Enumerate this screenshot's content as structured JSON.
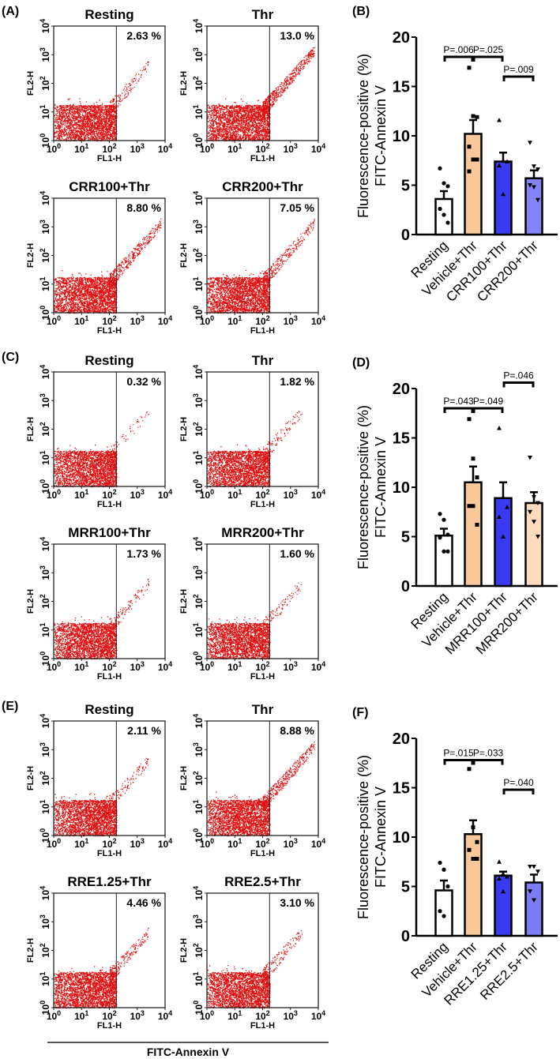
{
  "flow_axes": {
    "x_label": "FL1-H",
    "y_label": "FL2-H",
    "tick_base": "10",
    "tick_exponents": [
      "0",
      "1",
      "2",
      "3",
      "4"
    ]
  },
  "bottom_label": "FITC-Annexin V",
  "flow_panels": [
    {
      "label": "(A)",
      "plots": [
        {
          "title": "Resting",
          "percent": "2.63 %"
        },
        {
          "title": "Thr",
          "percent": "13.0 %"
        },
        {
          "title": "CRR100+Thr",
          "percent": "8.80 %"
        },
        {
          "title": "CRR200+Thr",
          "percent": "7.05 %"
        }
      ]
    },
    {
      "label": "(C)",
      "plots": [
        {
          "title": "Resting",
          "percent": "0.32 %"
        },
        {
          "title": "Thr",
          "percent": "1.82 %"
        },
        {
          "title": "MRR100+Thr",
          "percent": "1.73 %"
        },
        {
          "title": "MRR200+Thr",
          "percent": "1.60 %"
        }
      ]
    },
    {
      "label": "(E)",
      "plots": [
        {
          "title": "Resting",
          "percent": "2.11 %"
        },
        {
          "title": "Thr",
          "percent": "8.88 %"
        },
        {
          "title": "RRE1.25+Thr",
          "percent": "4.46 %"
        },
        {
          "title": "RRE2.5+Thr",
          "percent": "3.10 %"
        }
      ]
    }
  ],
  "chart_data": [
    {
      "type": "bar",
      "panel": "(B)",
      "ylabel": [
        "Fluorescence-positive (%)",
        "FITC-Annexin V"
      ],
      "ylim": [
        0,
        20
      ],
      "yticks": [
        "0",
        "5",
        "10",
        "15",
        "20"
      ],
      "categories": [
        "Resting",
        "Vehicle+Thr",
        "CRR100+Thr",
        "CRR200+Thr"
      ],
      "colors": [
        "#ffffff",
        "#f9c89a",
        "#3a3af2",
        "#8484f6"
      ],
      "markers": [
        "circle",
        "square",
        "triangle",
        "triangle-down"
      ],
      "means": [
        3.6,
        10.2,
        7.4,
        5.7
      ],
      "sem": [
        0.8,
        1.4,
        0.9,
        0.8
      ],
      "points": [
        [
          6.7,
          5.2,
          4.9,
          2.6,
          2.0,
          1.2
        ],
        [
          16.9,
          12.0,
          11.9,
          8.9,
          7.6,
          7.6,
          6.4
        ],
        [
          11.6,
          7.5,
          7.4,
          7.0,
          4.1
        ],
        [
          9.3,
          6.9,
          6.6,
          5.0,
          4.8,
          3.5
        ]
      ],
      "comparisons": [
        {
          "from": 0,
          "to": 1,
          "level": 18,
          "label": "P=.006"
        },
        {
          "from": 1,
          "to": 2,
          "level": 18,
          "label": "P=.025"
        },
        {
          "from": 2,
          "to": 3,
          "level": 16,
          "label": "P=.009"
        }
      ]
    },
    {
      "type": "bar",
      "panel": "(D)",
      "ylabel": [
        "Fluorescence-positive (%)",
        "FITC-Annexin V"
      ],
      "ylim": [
        0,
        20
      ],
      "yticks": [
        "0",
        "5",
        "10",
        "15",
        "20"
      ],
      "categories": [
        "Resting",
        "Vehicle+Thr",
        "MRR100+Thr",
        "MRR200+Thr"
      ],
      "colors": [
        "#ffffff",
        "#f9c89a",
        "#3a3af2",
        "#fcdcbc"
      ],
      "markers": [
        "circle",
        "square",
        "triangle",
        "triangle-down"
      ],
      "means": [
        5.1,
        10.5,
        8.9,
        8.4
      ],
      "sem": [
        0.7,
        1.6,
        1.6,
        1.1
      ],
      "points": [
        [
          7.3,
          6.7,
          5.2,
          4.9,
          3.5,
          3.5
        ],
        [
          16.9,
          12.9,
          11.0,
          8.1,
          8.1,
          6.2
        ],
        [
          16.0,
          9.0,
          8.0,
          7.0,
          5.0
        ],
        [
          13.0,
          9.0,
          8.4,
          7.5,
          6.5,
          5.0
        ]
      ],
      "comparisons": [
        {
          "from": 0,
          "to": 1,
          "level": 18,
          "label": "P=.043"
        },
        {
          "from": 1,
          "to": 2,
          "level": 18,
          "label": "P=.049"
        },
        {
          "from": 2,
          "to": 3,
          "level": 20.6,
          "label": "P=.046"
        }
      ]
    },
    {
      "type": "bar",
      "panel": "(F)",
      "ylabel": [
        "Fluorescence-positive (%)",
        "FITC-Annexin V"
      ],
      "ylim": [
        0,
        20
      ],
      "yticks": [
        "0",
        "5",
        "10",
        "15",
        "20"
      ],
      "categories": [
        "Resting",
        "Vehicle+Thr",
        "RRE1.25+Thr",
        "RRE2.5+Thr"
      ],
      "colors": [
        "#ffffff",
        "#f9c89a",
        "#3a3af2",
        "#7c7cf5"
      ],
      "markers": [
        "circle",
        "square",
        "triangle",
        "triangle-down"
      ],
      "means": [
        4.6,
        10.3,
        6.1,
        5.4
      ],
      "sem": [
        1.0,
        1.4,
        0.4,
        0.8
      ],
      "points": [
        [
          7.4,
          6.7,
          5.0,
          2.5,
          2.0
        ],
        [
          16.9,
          11.0,
          9.5,
          8.7,
          7.8,
          7.8
        ],
        [
          7.5,
          6.3,
          6.0,
          5.8,
          4.5
        ],
        [
          7.0,
          7.0,
          6.5,
          4.5,
          3.6
        ]
      ],
      "comparisons": [
        {
          "from": 0,
          "to": 1,
          "level": 17.8,
          "label": "P=.015"
        },
        {
          "from": 1,
          "to": 2,
          "level": 17.8,
          "label": "P=.033"
        },
        {
          "from": 2,
          "to": 3,
          "level": 14.8,
          "label": "P=.040"
        }
      ]
    }
  ]
}
